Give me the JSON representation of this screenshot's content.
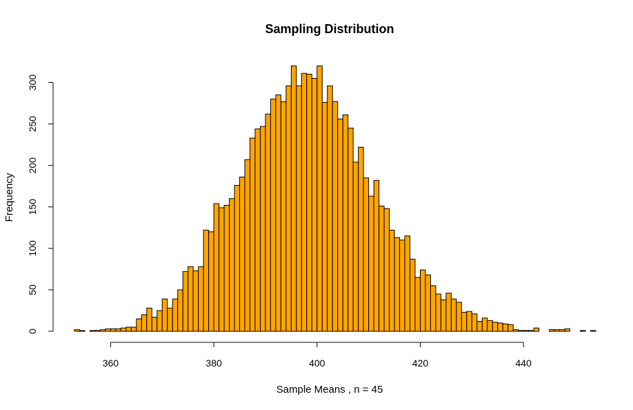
{
  "chart_data": {
    "type": "bar",
    "subtype": "histogram",
    "title": "Sampling Distribution",
    "xlabel": "Sample Means , n = 45",
    "ylabel": "Frequency",
    "bar_color": "#FFA500",
    "bar_border_color": "#000000",
    "xlim": [
      353,
      452
    ],
    "ylim": [
      0,
      300
    ],
    "x_ticks": [
      360,
      380,
      400,
      420,
      440
    ],
    "y_ticks": [
      0,
      50,
      100,
      150,
      200,
      250,
      300
    ],
    "bin_width": 1,
    "bin_start": 353,
    "grid": false,
    "legend": "none",
    "counts": [
      2,
      1,
      0,
      1,
      1,
      2,
      3,
      3,
      3,
      4,
      5,
      5,
      15,
      20,
      28,
      17,
      25,
      39,
      28,
      39,
      50,
      72,
      78,
      73,
      78,
      122,
      120,
      154,
      149,
      152,
      160,
      176,
      186,
      207,
      233,
      244,
      247,
      262,
      280,
      285,
      277,
      296,
      320,
      296,
      311,
      310,
      305,
      320,
      276,
      296,
      277,
      256,
      261,
      245,
      204,
      222,
      185,
      163,
      182,
      151,
      148,
      122,
      113,
      110,
      115,
      87,
      65,
      74,
      68,
      55,
      45,
      38,
      46,
      39,
      35,
      23,
      24,
      21,
      12,
      16,
      13,
      11,
      10,
      9,
      8,
      2,
      1,
      1,
      1,
      4,
      0,
      0,
      2,
      2,
      2,
      3,
      0,
      0,
      1,
      0,
      1
    ]
  }
}
